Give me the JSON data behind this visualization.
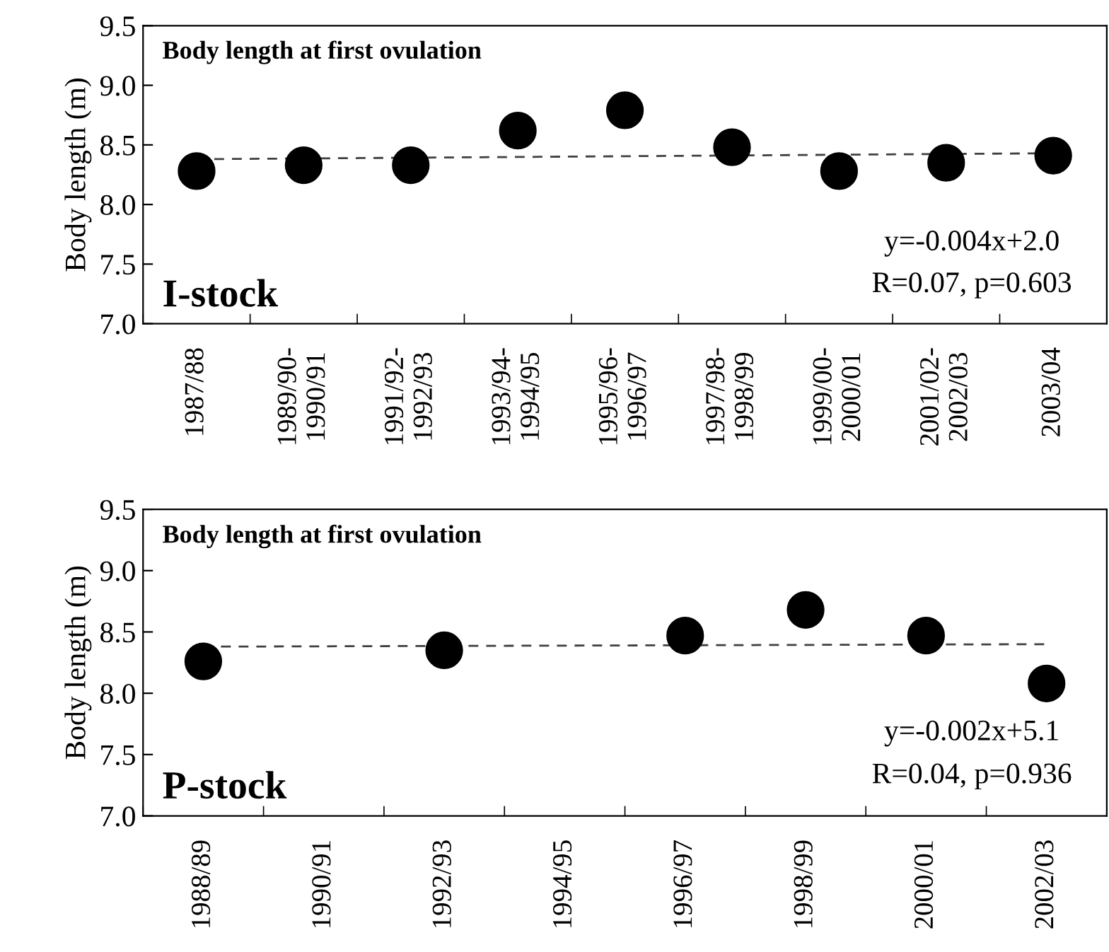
{
  "chart_data": [
    {
      "type": "scatter",
      "title": "Body length at first ovulation",
      "ylabel": "Body length (m)",
      "categories": [
        "1987/88",
        "1989/90-\n1990/91",
        "1991/92-\n1992/93",
        "1993/94-\n1994/95",
        "1995/96-\n1996/97",
        "1997/98-\n1998/99",
        "1999/00-\n2000/01",
        "2001/02-\n2002/03",
        "2003/04"
      ],
      "series": [
        {
          "color": "#000000",
          "marker": "circle",
          "values": [
            8.28,
            8.33,
            8.33,
            8.62,
            8.79,
            8.48,
            8.28,
            8.35,
            8.41
          ]
        },
        {
          "type": "line",
          "color": "#404040",
          "line_style": "dashed",
          "marker": "none",
          "x": [
            "1987/88",
            "2003/04"
          ],
          "values": [
            8.38,
            8.43
          ]
        }
      ],
      "ylim": [
        7.0,
        9.5
      ],
      "yticks": [
        {
          "value": 7.0,
          "label": "7.0"
        },
        {
          "value": 7.5,
          "label": "7.5"
        },
        {
          "value": 8.0,
          "label": "8.0"
        },
        {
          "value": 8.5,
          "label": "8.5"
        },
        {
          "value": 9.0,
          "label": "9.0"
        },
        {
          "value": 9.5,
          "label": "9.5"
        }
      ],
      "grid": false,
      "legend": false,
      "annotations": [
        "I-stock",
        "y=-0.004x+2.0",
        "R=0.07, p=0.603"
      ]
    },
    {
      "type": "scatter",
      "title": "Body length at first ovulation",
      "ylabel": "Body length (m)",
      "categories": [
        "1988/89",
        "1990/91",
        "1992/93",
        "1994/95",
        "1996/97",
        "1998/99",
        "2000/01",
        "2002/03"
      ],
      "series": [
        {
          "color": "#000000",
          "marker": "circle",
          "values": [
            8.26,
            null,
            8.35,
            null,
            8.47,
            8.68,
            8.47,
            8.08
          ]
        },
        {
          "type": "line",
          "color": "#404040",
          "line_style": "dashed",
          "marker": "none",
          "x": [
            "1988/89",
            "2002/03"
          ],
          "values": [
            8.38,
            8.4
          ]
        }
      ],
      "ylim": [
        7.0,
        9.5
      ],
      "yticks": [
        {
          "value": 7.0,
          "label": "7.0"
        },
        {
          "value": 7.5,
          "label": "7.5"
        },
        {
          "value": 8.0,
          "label": "8.0"
        },
        {
          "value": 8.5,
          "label": "8.5"
        },
        {
          "value": 9.0,
          "label": "9.0"
        },
        {
          "value": 9.5,
          "label": "9.5"
        }
      ],
      "grid": false,
      "legend": false,
      "annotations": [
        "P-stock",
        "y=-0.002x+5.1",
        "R=0.04, p=0.936"
      ]
    }
  ]
}
